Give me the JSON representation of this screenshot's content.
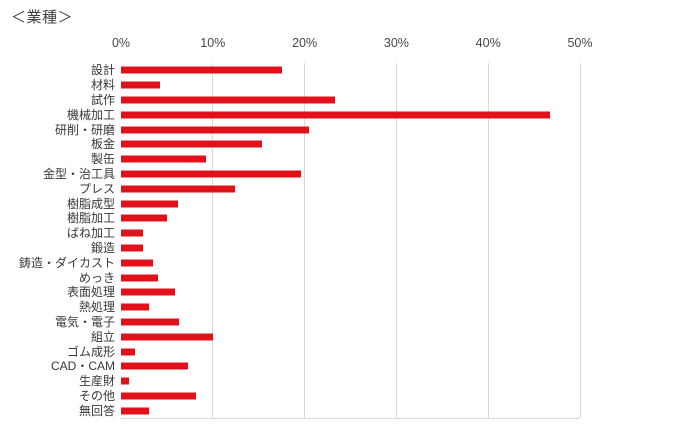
{
  "colors": {
    "bar": "#e0111a",
    "gridline": "#d9d9d9",
    "axis_text": "#44474a",
    "category_text": "#383838",
    "title_text": "#404040",
    "background": "#ffffff"
  },
  "chart_data": {
    "type": "bar",
    "orientation": "horizontal",
    "title": "＜業種＞",
    "categories": [
      "設計",
      "材料",
      "試作",
      "機械加工",
      "研削・研磨",
      "板金",
      "製缶",
      "金型・治工具",
      "プレス",
      "樹脂成型",
      "樹脂加工",
      "ばね加工",
      "鍛造",
      "鋳造・ダイカスト",
      "めっき",
      "表面処理",
      "熱処理",
      "電気・電子",
      "組立",
      "ゴム成形",
      "CAD・CAM",
      "生産財",
      "その他",
      "無回答"
    ],
    "values": [
      17.5,
      4.3,
      23.3,
      46.7,
      20.5,
      15.4,
      9.3,
      19.6,
      12.4,
      6.2,
      5.0,
      2.4,
      2.4,
      3.5,
      4.0,
      5.9,
      3.1,
      6.3,
      10.0,
      1.5,
      7.3,
      0.9,
      8.2,
      3.0
    ],
    "unit": "%",
    "xlabel": "",
    "ylabel": "",
    "x_axis": {
      "position": "top",
      "min": 0,
      "max": 50,
      "tick_labels": [
        "0%",
        "10%",
        "20%",
        "30%",
        "40%",
        "50%"
      ],
      "tick_values": [
        0,
        10,
        20,
        30,
        40,
        50
      ]
    },
    "grid": true,
    "legend": false
  }
}
